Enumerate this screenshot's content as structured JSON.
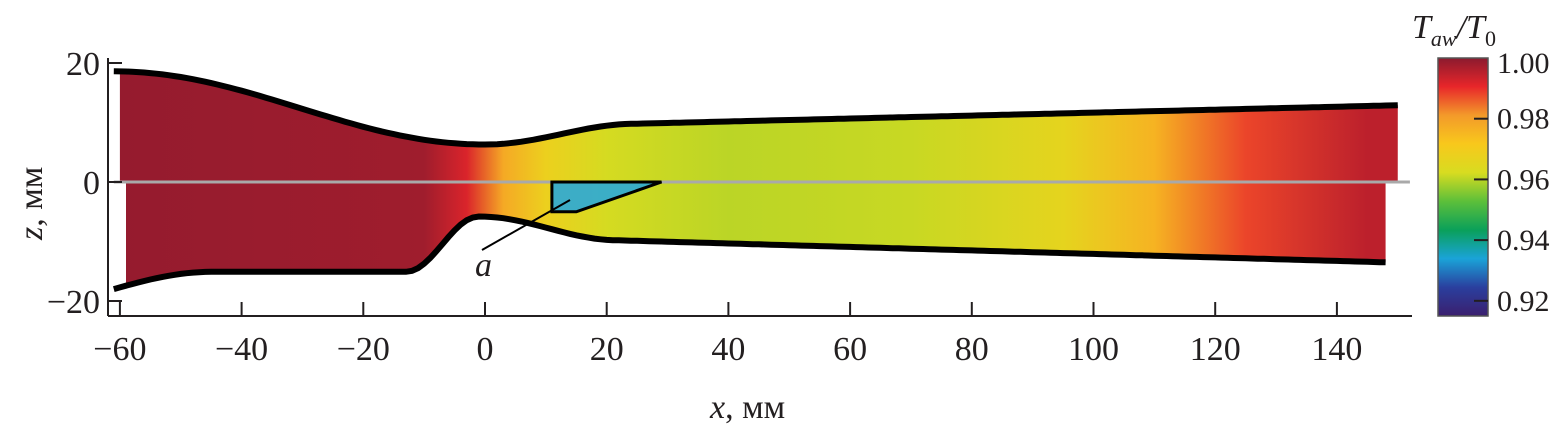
{
  "chart_data": {
    "type": "heatmap",
    "xlabel_var": "x",
    "xlabel_unit": ", мм",
    "ylabel_var": "z",
    "ylabel_unit": ", мм",
    "xlim": [
      -62,
      152
    ],
    "ylim": [
      -22,
      21
    ],
    "xticks": [
      -60,
      -40,
      -20,
      0,
      20,
      40,
      60,
      80,
      100,
      120,
      140
    ],
    "xtick_labels": [
      "−60",
      "−40",
      "−20",
      "0",
      "20",
      "40",
      "60",
      "80",
      "100",
      "120",
      "140"
    ],
    "yticks": [
      20,
      0,
      -20
    ],
    "ytick_labels": [
      "20",
      "0",
      "−20"
    ],
    "colorbar": {
      "title_main": "T",
      "title_sub": "aw",
      "title_sep": "/T",
      "title_sub2": "0",
      "range": [
        0.915,
        1.0
      ],
      "ticks": [
        1.0,
        0.98,
        0.96,
        0.94,
        0.92
      ],
      "tick_labels": [
        "1.00",
        "0.98",
        "0.96",
        "0.94",
        "0.92"
      ],
      "colormap": [
        "#3b1f6e",
        "#2a3f9e",
        "#1aa3d8",
        "#0aa05a",
        "#5cbf3a",
        "#d8dc20",
        "#f8c81c",
        "#f39a2a",
        "#e8262a",
        "#8b1a2e"
      ]
    },
    "annotation": "a",
    "field_profile_x": [
      -60,
      -10,
      -3,
      3,
      10,
      20,
      40,
      70,
      95,
      110,
      125,
      145
    ],
    "field_profile_value": [
      0.999,
      0.998,
      0.992,
      0.978,
      0.968,
      0.962,
      0.96,
      0.961,
      0.966,
      0.976,
      0.988,
      0.995
    ]
  }
}
